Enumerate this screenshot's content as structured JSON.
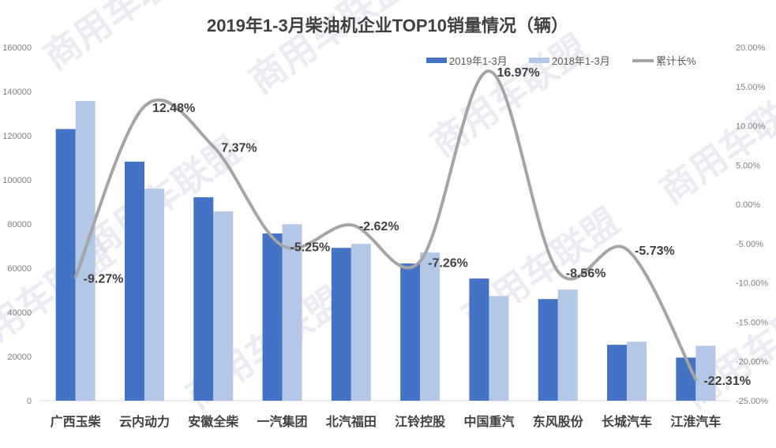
{
  "watermark": "商用车联盟",
  "colors": {
    "s2019": "#4472c4",
    "s2018": "#b4c7e7",
    "growth": "#a5a5a5",
    "axis": "#d9d9d9"
  },
  "chart_data": {
    "type": "bar",
    "title": "2019年1-3月柴油机企业TOP10销量情况（辆）",
    "categories": [
      "广西玉柴",
      "云内动力",
      "安徽全柴",
      "一汽集团",
      "北汽福田",
      "江铃控股",
      "中国重汽",
      "东风股份",
      "长城汽车",
      "江淮汽车"
    ],
    "series": [
      {
        "name": "2019年1-3月",
        "type": "bar",
        "axis": "left",
        "values": [
          123000,
          108200,
          92100,
          75700,
          69200,
          62100,
          55300,
          46000,
          25300,
          19500
        ]
      },
      {
        "name": "2018年1-3月",
        "type": "bar",
        "axis": "left",
        "values": [
          135700,
          96000,
          85700,
          79900,
          71000,
          67100,
          47400,
          50300,
          26700,
          24900
        ]
      },
      {
        "name": "累计长%",
        "type": "line",
        "axis": "right",
        "values": [
          -9.27,
          12.48,
          7.37,
          -5.25,
          -2.62,
          -7.26,
          16.97,
          -8.56,
          -5.73,
          -22.31
        ],
        "labels": [
          "-9.27%",
          "12.48%",
          "7.37%",
          "-5.25%",
          "-2.62%",
          "-7.26%",
          "16.97%",
          "-8.56%",
          "-5.73%",
          "-22.31%"
        ]
      }
    ],
    "y_left": {
      "ylim": [
        0,
        160000
      ],
      "ticks": [
        "0",
        "20000",
        "40000",
        "60000",
        "80000",
        "100000",
        "120000",
        "140000",
        "160000"
      ]
    },
    "y_right": {
      "ylim": [
        -25,
        20
      ],
      "ticks": [
        "-25.00%",
        "-20.00%",
        "-15.00%",
        "-10.00%",
        "-5.00%",
        "0.00%",
        "5.00%",
        "10.00%",
        "15.00%",
        "20.00%"
      ]
    },
    "legend": "top-right",
    "grid": false
  }
}
